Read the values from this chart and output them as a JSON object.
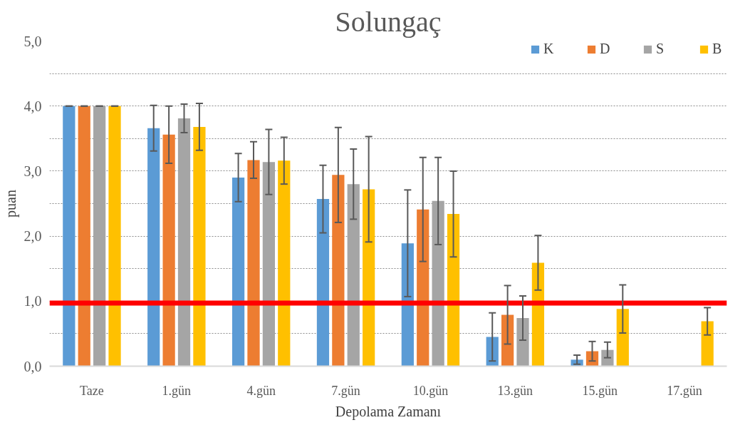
{
  "chart_data": {
    "type": "bar",
    "title": "Solungaç",
    "xlabel": "Depolama Zamanı",
    "ylabel": "puan",
    "categories": [
      "Taze",
      "1.gün",
      "4.gün",
      "7.gün",
      "10.gün",
      "13.gün",
      "15.gün",
      "17.gün"
    ],
    "series": [
      {
        "name": "K",
        "color": "#5b9bd5",
        "values": [
          4.0,
          3.66,
          2.9,
          2.57,
          1.89,
          0.45,
          0.1,
          null
        ],
        "errors": [
          0,
          0.35,
          0.37,
          0.52,
          0.82,
          0.37,
          0.07,
          null
        ]
      },
      {
        "name": "D",
        "color": "#ed7d31",
        "values": [
          4.0,
          3.56,
          3.17,
          2.94,
          2.41,
          0.79,
          0.23,
          null
        ],
        "errors": [
          0,
          0.44,
          0.28,
          0.73,
          0.8,
          0.45,
          0.15,
          null
        ]
      },
      {
        "name": "S",
        "color": "#a5a5a5",
        "values": [
          4.0,
          3.81,
          3.14,
          2.8,
          2.54,
          0.74,
          0.25,
          null
        ],
        "errors": [
          0,
          0.22,
          0.5,
          0.54,
          0.67,
          0.34,
          0.12,
          null
        ]
      },
      {
        "name": "B",
        "color": "#ffc000",
        "values": [
          4.0,
          3.68,
          3.16,
          2.72,
          2.34,
          1.59,
          0.88,
          0.69
        ],
        "errors": [
          0,
          0.36,
          0.36,
          0.81,
          0.66,
          0.42,
          0.37,
          0.21
        ]
      }
    ],
    "ylim": [
      0,
      5
    ],
    "yticks": [
      {
        "value": 0,
        "label": "0,0"
      },
      {
        "value": 0.5,
        "label": null
      },
      {
        "value": 1,
        "label": "1,0"
      },
      {
        "value": 1.5,
        "label": null
      },
      {
        "value": 2,
        "label": "2,0"
      },
      {
        "value": 2.5,
        "label": null
      },
      {
        "value": 3,
        "label": "3,0"
      },
      {
        "value": 3.5,
        "label": null
      },
      {
        "value": 4,
        "label": "4,0"
      },
      {
        "value": 4.5,
        "label": null
      },
      {
        "value": 5,
        "label": "5,0"
      }
    ],
    "ref_lines": [
      {
        "axis": "y",
        "value": 0.97,
        "color": "#ff0000"
      }
    ],
    "grid": "y",
    "legend": "top right"
  }
}
